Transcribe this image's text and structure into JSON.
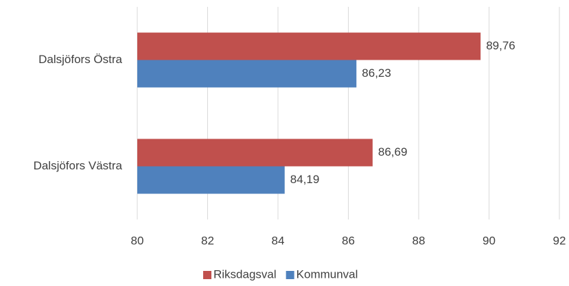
{
  "chart_data": {
    "type": "bar",
    "orientation": "horizontal",
    "categories": [
      "Dalsjöfors Östra",
      "Dalsjöfors Västra"
    ],
    "series": [
      {
        "name": "Riksdagsval",
        "color": "#c0504d",
        "values": [
          89.76,
          86.69
        ],
        "value_labels": [
          "89,76",
          "86,69"
        ]
      },
      {
        "name": "Kommunval",
        "color": "#4f81bd",
        "values": [
          86.23,
          84.19
        ],
        "value_labels": [
          "86,23",
          "84,19"
        ]
      }
    ],
    "xlim": [
      80,
      92
    ],
    "xticks": [
      80,
      82,
      84,
      86,
      88,
      90,
      92
    ],
    "grid": true,
    "legend": "bottom"
  }
}
